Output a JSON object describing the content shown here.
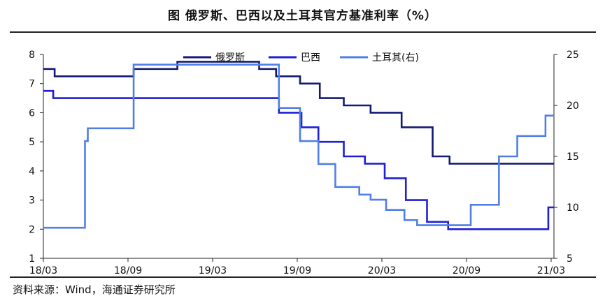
{
  "title": "图  俄罗斯、巴西以及土耳其官方基准利率（%）",
  "source": "资料来源：Wind，海通证券研究所",
  "chart_data": {
    "type": "line",
    "title": "图  俄罗斯、巴西以及土耳其官方基准利率（%）",
    "x_ticks": [
      {
        "label": "18/03",
        "t": 0
      },
      {
        "label": "18/09",
        "t": 6
      },
      {
        "label": "19/03",
        "t": 12
      },
      {
        "label": "19/09",
        "t": 18
      },
      {
        "label": "20/03",
        "t": 24
      },
      {
        "label": "20/09",
        "t": 30
      },
      {
        "label": "21/03",
        "t": 36
      }
    ],
    "x_range": [
      0,
      36.2
    ],
    "y_left": {
      "min": 1,
      "max": 8,
      "ticks": [
        1,
        2,
        3,
        4,
        5,
        6,
        7,
        8
      ]
    },
    "y_right": {
      "min": 5,
      "max": 25,
      "ticks": [
        5,
        10,
        15,
        20,
        25
      ]
    },
    "series": [
      {
        "name": "俄罗斯",
        "axis": "left",
        "color": "#141a73",
        "steps": [
          [
            0,
            7.5
          ],
          [
            0.8,
            7.25
          ],
          [
            6.4,
            7.5
          ],
          [
            9.5,
            7.75
          ],
          [
            15.3,
            7.5
          ],
          [
            16.5,
            7.25
          ],
          [
            18.2,
            7.0
          ],
          [
            19.6,
            6.5
          ],
          [
            21.3,
            6.25
          ],
          [
            23.2,
            6.0
          ],
          [
            25.4,
            5.5
          ],
          [
            27.6,
            4.5
          ],
          [
            28.8,
            4.25
          ],
          [
            36.2,
            4.25
          ]
        ]
      },
      {
        "name": "巴西",
        "axis": "left",
        "color": "#1f1fd6",
        "steps": [
          [
            0,
            6.75
          ],
          [
            0.7,
            6.5
          ],
          [
            16.7,
            6.0
          ],
          [
            18.3,
            5.5
          ],
          [
            19.5,
            5.0
          ],
          [
            21.3,
            4.5
          ],
          [
            22.8,
            4.25
          ],
          [
            24.2,
            3.75
          ],
          [
            25.7,
            3.0
          ],
          [
            27.2,
            2.25
          ],
          [
            28.7,
            2.0
          ],
          [
            35.8,
            2.75
          ],
          [
            36.2,
            2.75
          ]
        ]
      },
      {
        "name": "土耳其(右)",
        "axis": "right",
        "color": "#4f7fe6",
        "steps": [
          [
            0,
            8.0
          ],
          [
            2.95,
            16.5
          ],
          [
            3.15,
            17.75
          ],
          [
            6.4,
            24.0
          ],
          [
            16.7,
            19.75
          ],
          [
            17.0,
            19.75
          ],
          [
            18.2,
            16.5
          ],
          [
            19.5,
            14.25
          ],
          [
            20.7,
            12.0
          ],
          [
            22.4,
            11.25
          ],
          [
            23.2,
            10.75
          ],
          [
            24.3,
            9.75
          ],
          [
            25.6,
            8.75
          ],
          [
            26.5,
            8.25
          ],
          [
            30.3,
            10.25
          ],
          [
            32.3,
            15.0
          ],
          [
            33.6,
            17.0
          ],
          [
            35.6,
            19.0
          ],
          [
            36.2,
            19.0
          ]
        ]
      }
    ],
    "legend": [
      "俄罗斯",
      "巴西",
      "土耳其(右)"
    ],
    "legend_position": "top-right",
    "grid": false
  }
}
